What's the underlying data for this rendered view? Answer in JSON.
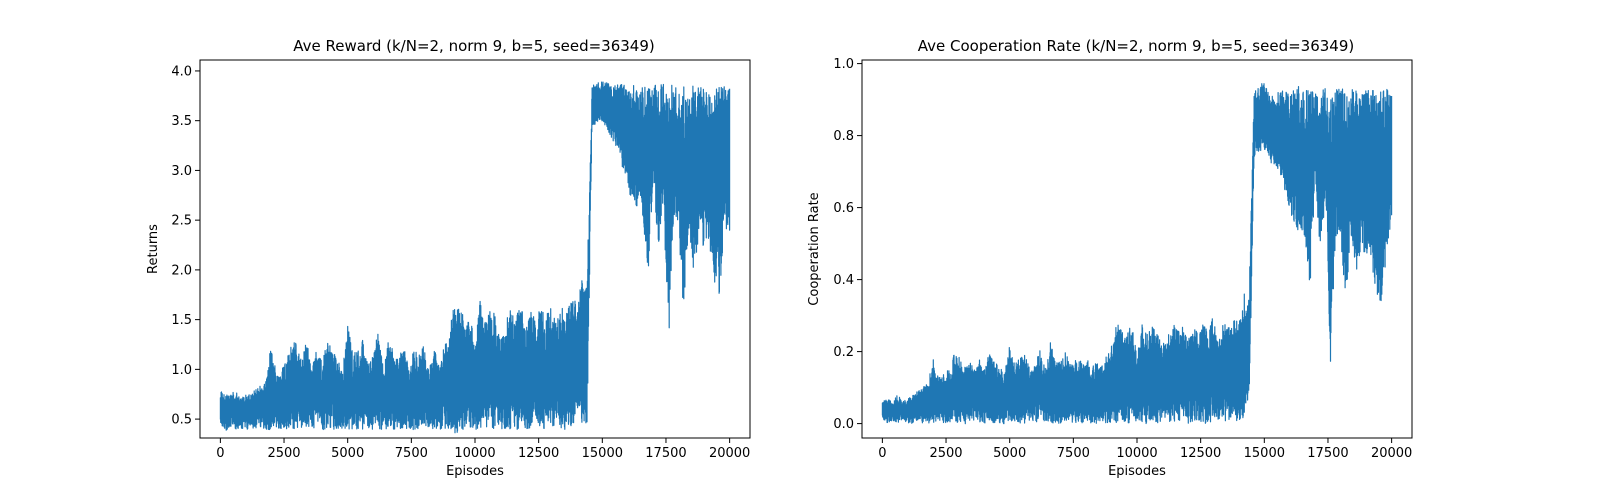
{
  "chart_data": [
    {
      "type": "line",
      "title": "Ave Reward (k/N=2, norm 9, b=5, seed=36349)",
      "xlabel": "Episodes",
      "ylabel": "Returns",
      "xlim": [
        -800,
        20800
      ],
      "ylim": [
        0.31,
        4.11
      ],
      "xticks": [
        0,
        2500,
        5000,
        7500,
        10000,
        12500,
        15000,
        17500,
        20000
      ],
      "xtick_labels": [
        "0",
        "2500",
        "5000",
        "7500",
        "10000",
        "12500",
        "15000",
        "17500",
        "20000"
      ],
      "yticks": [
        0.5,
        1.0,
        1.5,
        2.0,
        2.5,
        3.0,
        3.5,
        4.0
      ],
      "ytick_labels": [
        "0.5",
        "1.0",
        "1.5",
        "2.0",
        "2.5",
        "3.0",
        "3.5",
        "4.0"
      ],
      "grid": false,
      "series": [
        {
          "color": "#1f77b4",
          "x": [
            0,
            200,
            400,
            600,
            800,
            1000,
            1200,
            1400,
            1600,
            1800,
            2000,
            2200,
            2400,
            2600,
            2800,
            3000,
            3200,
            3400,
            3600,
            3800,
            4000,
            4200,
            4400,
            4600,
            4800,
            5000,
            5200,
            5400,
            5600,
            5800,
            6000,
            6200,
            6400,
            6600,
            6800,
            7000,
            7200,
            7400,
            7600,
            7800,
            8000,
            8200,
            8400,
            8600,
            8800,
            9000,
            9200,
            9400,
            9600,
            9800,
            10000,
            10200,
            10400,
            10600,
            10800,
            11000,
            11200,
            11400,
            11600,
            11800,
            12000,
            12200,
            12400,
            12600,
            12800,
            13000,
            13200,
            13400,
            13600,
            13800,
            14000,
            14200,
            14400,
            14600,
            14800,
            15000,
            15200,
            15400,
            15600,
            15800,
            16000,
            16200,
            16400,
            16600,
            16800,
            17000,
            17200,
            17400,
            17600,
            17800,
            18000,
            18200,
            18400,
            18600,
            18800,
            19000,
            19200,
            19400,
            19600,
            19800,
            20000
          ],
          "low": [
            0.45,
            0.38,
            0.42,
            0.4,
            0.41,
            0.4,
            0.39,
            0.4,
            0.41,
            0.4,
            0.39,
            0.4,
            0.4,
            0.39,
            0.41,
            0.4,
            0.39,
            0.4,
            0.4,
            0.4,
            0.39,
            0.4,
            0.4,
            0.39,
            0.4,
            0.4,
            0.39,
            0.4,
            0.4,
            0.39,
            0.4,
            0.4,
            0.39,
            0.4,
            0.4,
            0.39,
            0.4,
            0.4,
            0.39,
            0.4,
            0.4,
            0.41,
            0.4,
            0.39,
            0.4,
            0.4,
            0.33,
            0.4,
            0.39,
            0.4,
            0.39,
            0.4,
            0.39,
            0.4,
            0.4,
            0.39,
            0.4,
            0.4,
            0.39,
            0.4,
            0.4,
            0.39,
            0.4,
            0.41,
            0.39,
            0.4,
            0.4,
            0.39,
            0.4,
            0.4,
            0.4,
            0.4,
            0.38,
            3.45,
            3.45,
            3.5,
            3.4,
            3.3,
            3.2,
            3.0,
            2.8,
            2.7,
            2.6,
            2.5,
            1.95,
            2.9,
            2.2,
            2.7,
            1.25,
            2.4,
            2.3,
            1.55,
            2.4,
            1.9,
            2.3,
            2.2,
            2.25,
            1.85,
            1.75,
            2.4,
            2.4
          ],
          "high": [
            0.78,
            0.75,
            0.76,
            0.78,
            0.7,
            0.75,
            0.76,
            0.8,
            0.85,
            0.9,
            1.27,
            0.95,
            1.0,
            1.1,
            1.27,
            1.28,
            1.1,
            1.3,
            1.0,
            1.25,
            1.05,
            1.32,
            1.2,
            1.1,
            1.0,
            1.45,
            1.15,
            1.2,
            1.3,
            1.05,
            1.15,
            1.4,
            1.0,
            1.3,
            1.2,
            1.1,
            1.25,
            1.0,
            1.2,
            1.15,
            1.25,
            1.0,
            1.2,
            1.05,
            1.25,
            1.35,
            1.75,
            1.6,
            1.55,
            1.6,
            1.2,
            1.74,
            1.5,
            1.6,
            1.55,
            1.3,
            1.5,
            1.6,
            1.55,
            1.65,
            1.4,
            1.6,
            1.5,
            1.65,
            1.55,
            1.7,
            1.5,
            1.65,
            1.6,
            1.75,
            1.65,
            1.98,
            1.95,
            3.87,
            3.9,
            3.89,
            3.88,
            3.85,
            3.86,
            3.88,
            3.85,
            3.86,
            3.88,
            3.84,
            3.9,
            3.86,
            3.85,
            3.88,
            3.85,
            3.86,
            3.87,
            3.85,
            3.86,
            3.88,
            3.84,
            3.86,
            3.87,
            3.85,
            3.86,
            3.86,
            3.82
          ]
        }
      ]
    },
    {
      "type": "line",
      "title": "Ave Cooperation Rate (k/N=2, norm 9, b=5, seed=36349)",
      "xlabel": "Episodes",
      "ylabel": "Cooperation Rate",
      "xlim": [
        -800,
        20800
      ],
      "ylim": [
        -0.04,
        1.01
      ],
      "xticks": [
        0,
        2500,
        5000,
        7500,
        10000,
        12500,
        15000,
        17500,
        20000
      ],
      "xtick_labels": [
        "0",
        "2500",
        "5000",
        "7500",
        "10000",
        "12500",
        "15000",
        "17500",
        "20000"
      ],
      "yticks": [
        0.0,
        0.2,
        0.4,
        0.6,
        0.8,
        1.0
      ],
      "ytick_labels": [
        "0.0",
        "0.2",
        "0.4",
        "0.6",
        "0.8",
        "1.0"
      ],
      "grid": false,
      "series": [
        {
          "color": "#1f77b4",
          "x": [
            0,
            200,
            400,
            600,
            800,
            1000,
            1200,
            1400,
            1600,
            1800,
            2000,
            2200,
            2400,
            2600,
            2800,
            3000,
            3200,
            3400,
            3600,
            3800,
            4000,
            4200,
            4400,
            4600,
            4800,
            5000,
            5200,
            5400,
            5600,
            5800,
            6000,
            6200,
            6400,
            6600,
            6800,
            7000,
            7200,
            7400,
            7600,
            7800,
            8000,
            8200,
            8400,
            8600,
            8800,
            9000,
            9200,
            9400,
            9600,
            9800,
            10000,
            10200,
            10400,
            10600,
            10800,
            11000,
            11200,
            11400,
            11600,
            11800,
            12000,
            12200,
            12400,
            12600,
            12800,
            13000,
            13200,
            13400,
            13600,
            13800,
            14000,
            14200,
            14400,
            14600,
            14800,
            15000,
            15200,
            15400,
            15600,
            15800,
            16000,
            16200,
            16400,
            16600,
            16800,
            17000,
            17200,
            17400,
            17600,
            17800,
            18000,
            18200,
            18400,
            18600,
            18800,
            19000,
            19200,
            19400,
            19600,
            19800,
            20000
          ],
          "low": [
            0.01,
            0.0,
            0.01,
            0.0,
            0.01,
            0.0,
            0.0,
            0.01,
            0.0,
            0.0,
            0.0,
            0.01,
            0.0,
            0.0,
            0.01,
            0.0,
            0.0,
            0.0,
            0.01,
            0.0,
            0.0,
            0.01,
            0.0,
            0.0,
            0.0,
            0.01,
            0.0,
            0.0,
            0.0,
            0.01,
            0.0,
            0.0,
            0.01,
            0.0,
            0.0,
            0.0,
            0.01,
            0.0,
            0.0,
            0.0,
            0.01,
            0.0,
            0.0,
            0.01,
            0.0,
            0.0,
            0.0,
            0.01,
            0.0,
            0.0,
            0.01,
            0.0,
            0.0,
            0.01,
            0.0,
            0.0,
            0.01,
            0.0,
            0.0,
            0.01,
            0.0,
            0.0,
            0.01,
            0.0,
            0.0,
            0.01,
            0.0,
            0.0,
            0.01,
            0.0,
            0.0,
            0.01,
            0.04,
            0.74,
            0.75,
            0.76,
            0.72,
            0.72,
            0.7,
            0.65,
            0.58,
            0.55,
            0.53,
            0.5,
            0.38,
            0.68,
            0.46,
            0.6,
            0.17,
            0.52,
            0.5,
            0.33,
            0.52,
            0.42,
            0.48,
            0.45,
            0.46,
            0.34,
            0.3,
            0.46,
            0.58
          ],
          "high": [
            0.06,
            0.07,
            0.06,
            0.08,
            0.06,
            0.07,
            0.08,
            0.09,
            0.1,
            0.12,
            0.18,
            0.13,
            0.14,
            0.15,
            0.19,
            0.19,
            0.15,
            0.19,
            0.15,
            0.19,
            0.15,
            0.2,
            0.17,
            0.16,
            0.14,
            0.22,
            0.17,
            0.18,
            0.2,
            0.15,
            0.17,
            0.21,
            0.15,
            0.23,
            0.18,
            0.17,
            0.2,
            0.16,
            0.18,
            0.18,
            0.19,
            0.15,
            0.18,
            0.16,
            0.19,
            0.22,
            0.28,
            0.27,
            0.26,
            0.27,
            0.19,
            0.28,
            0.25,
            0.27,
            0.25,
            0.22,
            0.25,
            0.28,
            0.26,
            0.27,
            0.23,
            0.27,
            0.25,
            0.28,
            0.26,
            0.3,
            0.25,
            0.28,
            0.27,
            0.3,
            0.28,
            0.37,
            0.36,
            0.92,
            0.94,
            0.95,
            0.93,
            0.92,
            0.93,
            0.94,
            0.92,
            0.93,
            0.94,
            0.92,
            0.95,
            0.93,
            0.92,
            0.94,
            0.92,
            0.93,
            0.94,
            0.92,
            0.93,
            0.94,
            0.92,
            0.93,
            0.94,
            0.92,
            0.93,
            0.93,
            0.91
          ]
        }
      ]
    }
  ]
}
